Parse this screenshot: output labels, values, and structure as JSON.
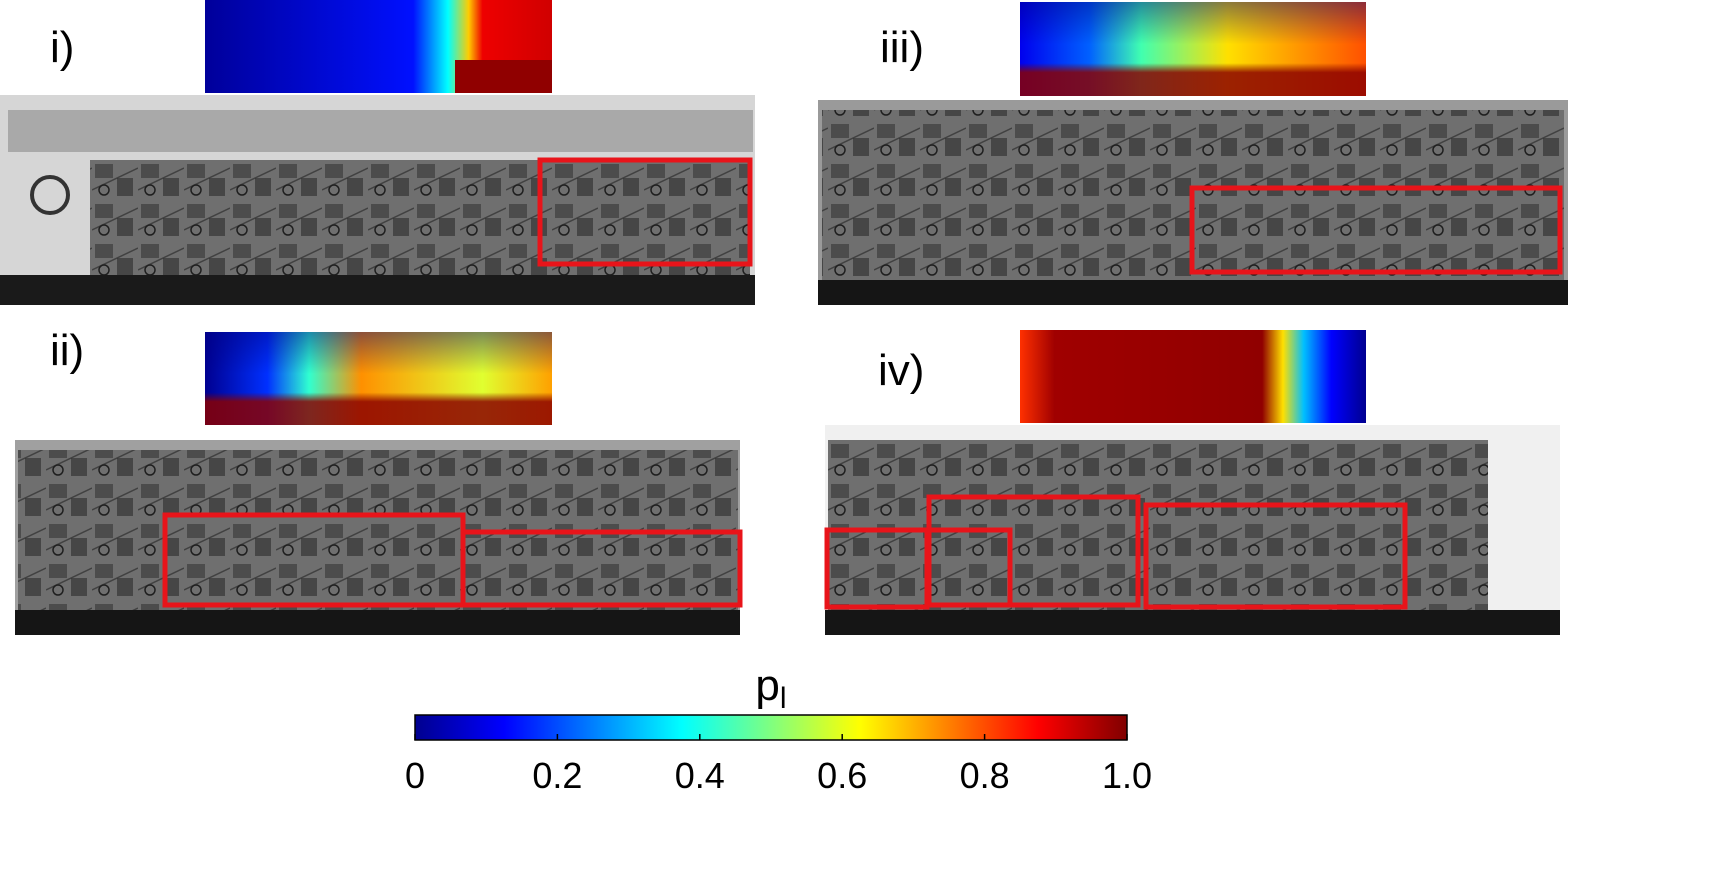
{
  "panels": [
    {
      "label": "i)"
    },
    {
      "label": "iii)"
    },
    {
      "label": "ii)"
    },
    {
      "label": "iv)"
    }
  ],
  "colorbar": {
    "label": "p",
    "label_sub": "l",
    "ticks": [
      0,
      0.2,
      0.4,
      0.6,
      0.8,
      {
        "value": 1,
        "label": "1.0"
      }
    ]
  }
}
